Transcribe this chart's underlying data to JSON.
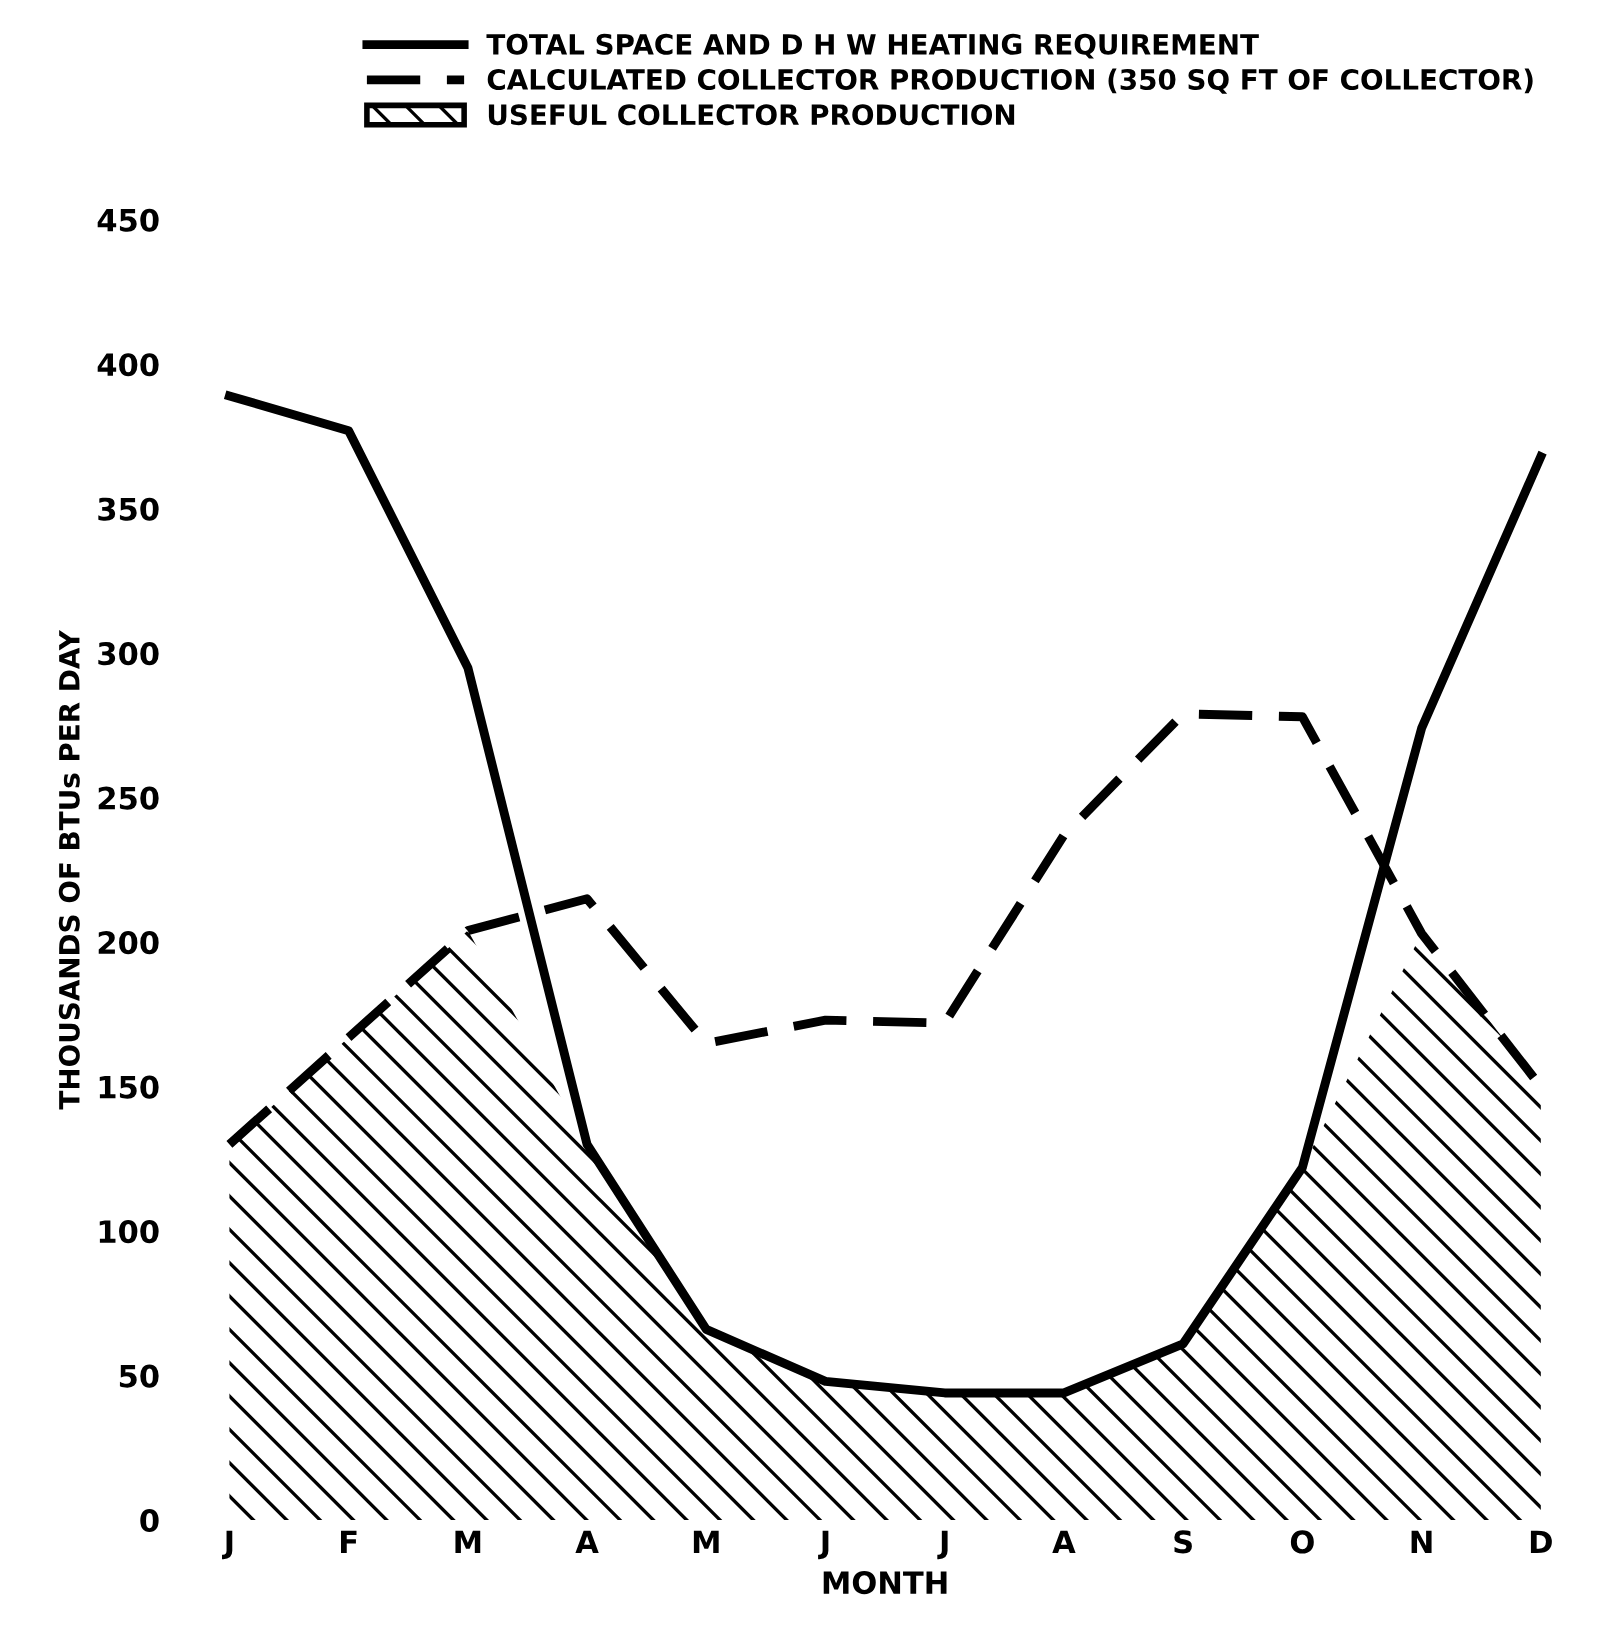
{
  "chart_data": {
    "type": "line",
    "xlabel": "MONTH",
    "ylabel": "THOUSANDS OF BTUs PER DAY",
    "categories": [
      "J",
      "F",
      "M",
      "A",
      "M",
      "J",
      "J",
      "A",
      "S",
      "O",
      "N",
      "D"
    ],
    "ylim": [
      0,
      450
    ],
    "yticks": [
      0,
      50,
      100,
      150,
      200,
      250,
      300,
      350,
      400,
      450
    ],
    "grid": false,
    "legend": "top left",
    "marker": "none",
    "series": [
      {
        "name": "USEFUL COLLECTOR PRODUCTION",
        "type": "area",
        "color": "#000000",
        "values": [
          130,
          167,
          204,
          130,
          66,
          48,
          44,
          44,
          61,
          122,
          203,
          150
        ]
      },
      {
        "name": "TOTAL SPACE AND D H W HEATING REQUIREMENT",
        "line_style": "solid",
        "color": "#000000",
        "values": [
          389,
          377,
          295,
          130,
          66,
          48,
          44,
          44,
          61,
          122,
          274,
          368
        ]
      },
      {
        "name": "CALCULATED COLLECTOR PRODUCTION (350 SQ FT OF COLLECTOR)",
        "line_style": "dashed",
        "color": "#000000",
        "values": [
          130,
          167,
          204,
          215,
          165,
          173,
          172,
          237,
          279,
          278,
          203,
          150
        ]
      }
    ]
  }
}
